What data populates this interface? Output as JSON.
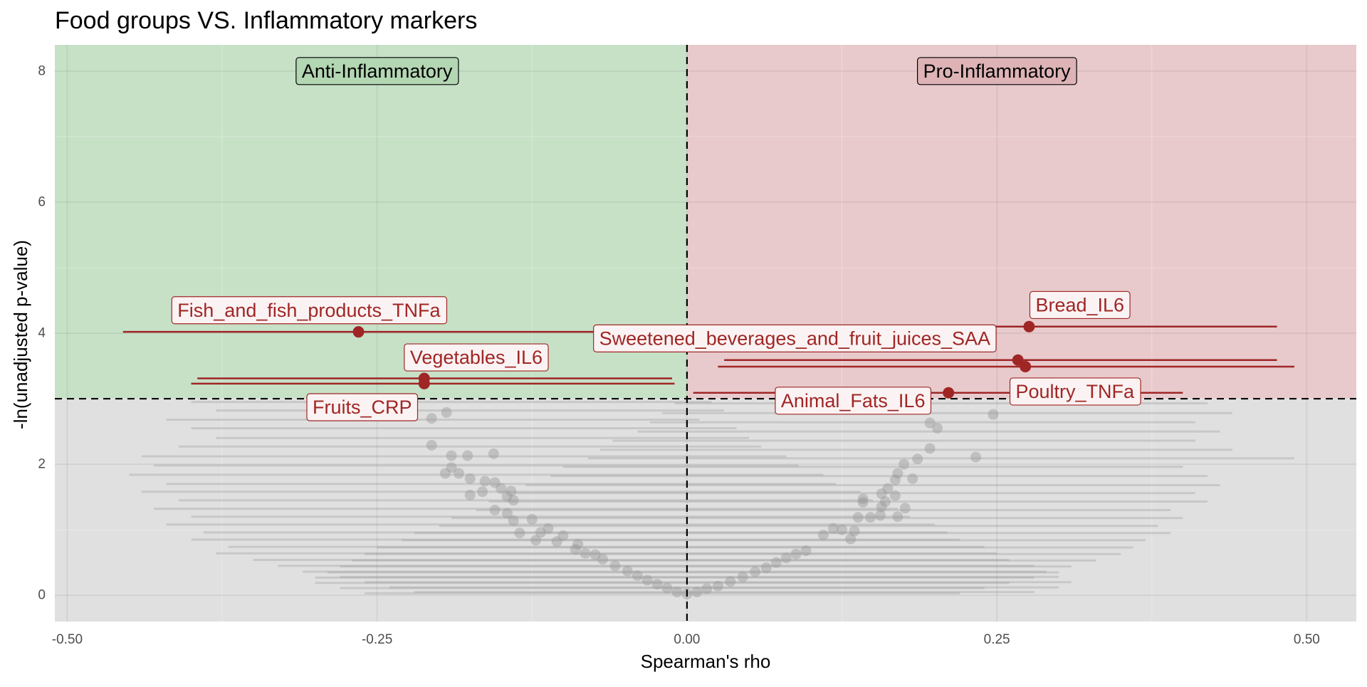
{
  "chart_data": {
    "type": "scatter",
    "title": "Food groups VS. Inflammatory markers",
    "xlabel": "Spearman's rho",
    "ylabel": "-ln(unadjusted p-value)",
    "xlim": [
      -0.51,
      0.54
    ],
    "ylim": [
      -0.4,
      8.4
    ],
    "x_ticks": [
      -0.5,
      -0.25,
      0.0,
      0.25,
      0.5
    ],
    "x_tick_labels": [
      "-0.50",
      "-0.25",
      "0.00",
      "0.25",
      "0.50"
    ],
    "y_ticks": [
      0,
      2,
      4,
      6,
      8
    ],
    "y_tick_labels": [
      "0",
      "2",
      "4",
      "6",
      "8"
    ],
    "threshold_y": 3.0,
    "threshold_x": 0.0,
    "grid": true,
    "regions": {
      "anti": {
        "label": "Anti-Inflammatory",
        "color": "#c7e1c7"
      },
      "pro": {
        "label": "Pro-Inflammatory",
        "color": "#e8cacc"
      },
      "nonsig": {
        "color": "#e0e0e0"
      }
    },
    "colors": {
      "significant": "#a02626",
      "nonsignificant": "#9a9a9a",
      "label_border": "#a02626",
      "label_fill": "#fbf3f3"
    },
    "significant_points": [
      {
        "label": "Fish_and_fish_products_TNFa",
        "x": -0.265,
        "y": 4.02,
        "lo": -0.455,
        "hi": 0.02,
        "label_x": -0.305,
        "label_y": 4.35
      },
      {
        "label": "Vegetables_IL6",
        "x": -0.212,
        "y": 3.31,
        "lo": -0.395,
        "hi": -0.012,
        "label_x": -0.17,
        "label_y": 3.63
      },
      {
        "label": "Fruits_CRP",
        "x": -0.212,
        "y": 3.23,
        "lo": -0.4,
        "hi": -0.01,
        "label_x": -0.262,
        "label_y": 2.87
      },
      {
        "label": "Bread_IL6",
        "x": 0.276,
        "y": 4.1,
        "lo": 0.02,
        "hi": 0.476,
        "label_x": 0.317,
        "label_y": 4.43
      },
      {
        "label": "Sweetened_beverages_and_fruit_juices_SAA",
        "x": 0.267,
        "y": 3.59,
        "lo": 0.03,
        "hi": 0.476,
        "label_x": 0.087,
        "label_y": 3.92
      },
      {
        "label": "Poultry_TNFa",
        "x": 0.273,
        "y": 3.49,
        "lo": 0.025,
        "hi": 0.49,
        "label_x": 0.313,
        "label_y": 3.11
      },
      {
        "label": "Animal_Fats_IL6",
        "x": 0.211,
        "y": 3.09,
        "lo": 0.005,
        "hi": 0.4,
        "label_x": 0.134,
        "label_y": 2.97
      }
    ],
    "nonsignificant_points": [
      {
        "x": -0.206,
        "y": 2.7
      },
      {
        "x": -0.194,
        "y": 2.79
      },
      {
        "x": -0.206,
        "y": 2.29
      },
      {
        "x": -0.19,
        "y": 2.13
      },
      {
        "x": -0.177,
        "y": 2.13
      },
      {
        "x": -0.156,
        "y": 2.16
      },
      {
        "x": -0.19,
        "y": 1.95
      },
      {
        "x": -0.195,
        "y": 1.86
      },
      {
        "x": -0.184,
        "y": 1.86
      },
      {
        "x": -0.175,
        "y": 1.78
      },
      {
        "x": -0.163,
        "y": 1.74
      },
      {
        "x": -0.155,
        "y": 1.72
      },
      {
        "x": -0.15,
        "y": 1.63
      },
      {
        "x": -0.142,
        "y": 1.59
      },
      {
        "x": -0.165,
        "y": 1.58
      },
      {
        "x": -0.175,
        "y": 1.53
      },
      {
        "x": -0.145,
        "y": 1.51
      },
      {
        "x": -0.14,
        "y": 1.45
      },
      {
        "x": -0.155,
        "y": 1.3
      },
      {
        "x": -0.145,
        "y": 1.25
      },
      {
        "x": -0.14,
        "y": 1.14
      },
      {
        "x": -0.125,
        "y": 1.16
      },
      {
        "x": -0.112,
        "y": 1.02
      },
      {
        "x": -0.118,
        "y": 0.96
      },
      {
        "x": -0.135,
        "y": 0.95
      },
      {
        "x": -0.1,
        "y": 0.91
      },
      {
        "x": -0.105,
        "y": 0.82
      },
      {
        "x": -0.122,
        "y": 0.84
      },
      {
        "x": -0.088,
        "y": 0.78
      },
      {
        "x": -0.09,
        "y": 0.7
      },
      {
        "x": -0.082,
        "y": 0.64
      },
      {
        "x": -0.074,
        "y": 0.62
      },
      {
        "x": -0.068,
        "y": 0.55
      },
      {
        "x": -0.058,
        "y": 0.45
      },
      {
        "x": -0.048,
        "y": 0.37
      },
      {
        "x": -0.04,
        "y": 0.3
      },
      {
        "x": -0.032,
        "y": 0.23
      },
      {
        "x": -0.024,
        "y": 0.17
      },
      {
        "x": -0.016,
        "y": 0.11
      },
      {
        "x": -0.008,
        "y": 0.05
      },
      {
        "x": 0.0,
        "y": 0.02
      },
      {
        "x": 0.008,
        "y": 0.05
      },
      {
        "x": 0.016,
        "y": 0.1
      },
      {
        "x": 0.025,
        "y": 0.14
      },
      {
        "x": 0.035,
        "y": 0.21
      },
      {
        "x": 0.045,
        "y": 0.28
      },
      {
        "x": 0.055,
        "y": 0.36
      },
      {
        "x": 0.064,
        "y": 0.42
      },
      {
        "x": 0.072,
        "y": 0.5
      },
      {
        "x": 0.08,
        "y": 0.57
      },
      {
        "x": 0.088,
        "y": 0.63
      },
      {
        "x": 0.096,
        "y": 0.68
      },
      {
        "x": 0.11,
        "y": 0.92
      },
      {
        "x": 0.118,
        "y": 1.02
      },
      {
        "x": 0.125,
        "y": 1.0
      },
      {
        "x": 0.135,
        "y": 0.98
      },
      {
        "x": 0.132,
        "y": 0.86
      },
      {
        "x": 0.138,
        "y": 1.19
      },
      {
        "x": 0.148,
        "y": 1.19
      },
      {
        "x": 0.156,
        "y": 1.22
      },
      {
        "x": 0.142,
        "y": 1.42
      },
      {
        "x": 0.142,
        "y": 1.47
      },
      {
        "x": 0.157,
        "y": 1.35
      },
      {
        "x": 0.16,
        "y": 1.43
      },
      {
        "x": 0.168,
        "y": 1.52
      },
      {
        "x": 0.157,
        "y": 1.55
      },
      {
        "x": 0.162,
        "y": 1.63
      },
      {
        "x": 0.176,
        "y": 1.33
      },
      {
        "x": 0.17,
        "y": 1.2
      },
      {
        "x": 0.168,
        "y": 1.76
      },
      {
        "x": 0.17,
        "y": 1.86
      },
      {
        "x": 0.182,
        "y": 1.78
      },
      {
        "x": 0.186,
        "y": 2.08
      },
      {
        "x": 0.175,
        "y": 2.0
      },
      {
        "x": 0.196,
        "y": 2.24
      },
      {
        "x": 0.196,
        "y": 2.63
      },
      {
        "x": 0.202,
        "y": 2.55
      },
      {
        "x": 0.233,
        "y": 2.11
      },
      {
        "x": 0.247,
        "y": 2.76
      }
    ],
    "nonsignificant_intervals": [
      {
        "lo": -0.4,
        "hi": 0.02,
        "y": 2.95
      },
      {
        "lo": -0.38,
        "hi": 0.03,
        "y": 2.82
      },
      {
        "lo": -0.42,
        "hi": 0.01,
        "y": 2.68
      },
      {
        "lo": -0.4,
        "hi": 0.04,
        "y": 2.55
      },
      {
        "lo": -0.38,
        "hi": 0.05,
        "y": 2.4
      },
      {
        "lo": -0.41,
        "hi": 0.06,
        "y": 2.27
      },
      {
        "lo": -0.44,
        "hi": 0.08,
        "y": 2.12
      },
      {
        "lo": -0.43,
        "hi": 0.09,
        "y": 1.98
      },
      {
        "lo": -0.45,
        "hi": 0.11,
        "y": 1.84
      },
      {
        "lo": -0.42,
        "hi": 0.12,
        "y": 1.7
      },
      {
        "lo": -0.44,
        "hi": 0.14,
        "y": 1.58
      },
      {
        "lo": -0.41,
        "hi": 0.15,
        "y": 1.45
      },
      {
        "lo": -0.43,
        "hi": 0.17,
        "y": 1.32
      },
      {
        "lo": -0.4,
        "hi": 0.18,
        "y": 1.2
      },
      {
        "lo": -0.42,
        "hi": 0.2,
        "y": 1.08
      },
      {
        "lo": -0.39,
        "hi": 0.21,
        "y": 0.96
      },
      {
        "lo": -0.4,
        "hi": 0.22,
        "y": 0.85
      },
      {
        "lo": -0.37,
        "hi": 0.24,
        "y": 0.74
      },
      {
        "lo": -0.38,
        "hi": 0.25,
        "y": 0.64
      },
      {
        "lo": -0.35,
        "hi": 0.26,
        "y": 0.54
      },
      {
        "lo": -0.33,
        "hi": 0.28,
        "y": 0.45
      },
      {
        "lo": -0.31,
        "hi": 0.29,
        "y": 0.36
      },
      {
        "lo": -0.28,
        "hi": 0.3,
        "y": 0.28
      },
      {
        "lo": -0.26,
        "hi": 0.31,
        "y": 0.2
      },
      {
        "lo": -0.24,
        "hi": 0.3,
        "y": 0.12
      },
      {
        "lo": -0.22,
        "hi": 0.28,
        "y": 0.05
      },
      {
        "lo": -0.01,
        "hi": 0.42,
        "y": 2.93
      },
      {
        "lo": -0.02,
        "hi": 0.44,
        "y": 2.78
      },
      {
        "lo": -0.03,
        "hi": 0.41,
        "y": 2.64
      },
      {
        "lo": -0.04,
        "hi": 0.43,
        "y": 2.5
      },
      {
        "lo": -0.06,
        "hi": 0.41,
        "y": 2.36
      },
      {
        "lo": -0.07,
        "hi": 0.44,
        "y": 2.22
      },
      {
        "lo": -0.08,
        "hi": 0.49,
        "y": 2.09
      },
      {
        "lo": -0.1,
        "hi": 0.4,
        "y": 1.96
      },
      {
        "lo": -0.11,
        "hi": 0.42,
        "y": 1.82
      },
      {
        "lo": -0.13,
        "hi": 0.43,
        "y": 1.68
      },
      {
        "lo": -0.14,
        "hi": 0.41,
        "y": 1.56
      },
      {
        "lo": -0.16,
        "hi": 0.42,
        "y": 1.43
      },
      {
        "lo": -0.17,
        "hi": 0.39,
        "y": 1.3
      },
      {
        "lo": -0.19,
        "hi": 0.4,
        "y": 1.18
      },
      {
        "lo": -0.2,
        "hi": 0.38,
        "y": 1.06
      },
      {
        "lo": -0.22,
        "hi": 0.39,
        "y": 0.95
      },
      {
        "lo": -0.23,
        "hi": 0.37,
        "y": 0.84
      },
      {
        "lo": -0.25,
        "hi": 0.36,
        "y": 0.73
      },
      {
        "lo": -0.26,
        "hi": 0.35,
        "y": 0.63
      },
      {
        "lo": -0.27,
        "hi": 0.33,
        "y": 0.53
      },
      {
        "lo": -0.28,
        "hi": 0.31,
        "y": 0.44
      },
      {
        "lo": -0.29,
        "hi": 0.3,
        "y": 0.35
      },
      {
        "lo": -0.3,
        "hi": 0.28,
        "y": 0.27
      },
      {
        "lo": -0.3,
        "hi": 0.26,
        "y": 0.19
      },
      {
        "lo": -0.28,
        "hi": 0.24,
        "y": 0.11
      },
      {
        "lo": -0.26,
        "hi": 0.22,
        "y": 0.03
      }
    ]
  }
}
